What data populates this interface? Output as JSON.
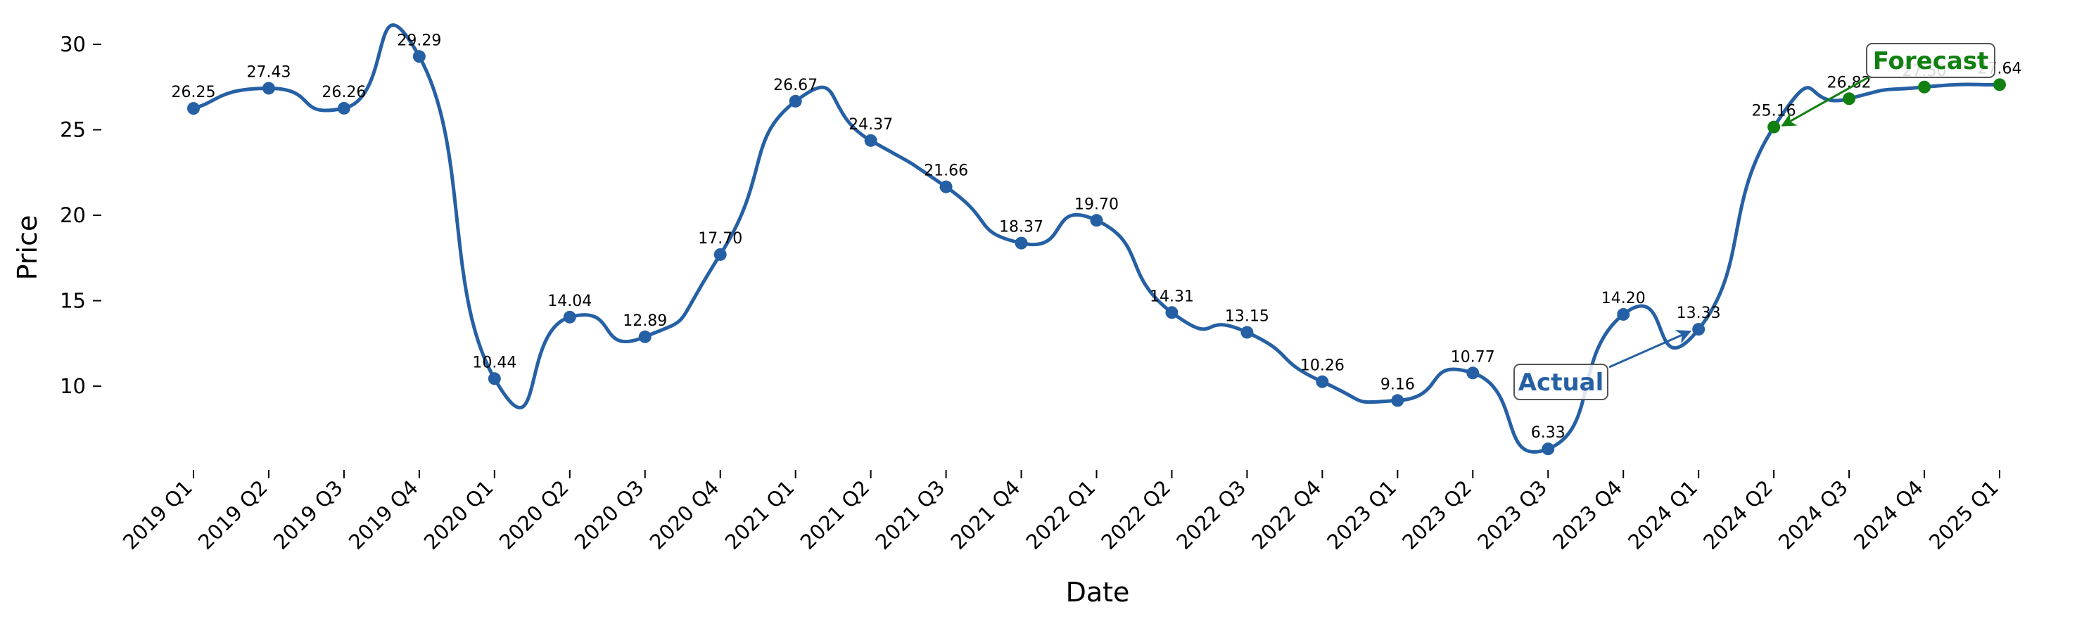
{
  "chart_data": {
    "type": "line",
    "title": "",
    "xlabel": "Date",
    "ylabel": "Price",
    "categories": [
      "2019 Q1",
      "2019 Q2",
      "2019 Q3",
      "2019 Q4",
      "2020 Q1",
      "2020 Q2",
      "2020 Q3",
      "2020 Q4",
      "2021 Q1",
      "2021 Q2",
      "2021 Q3",
      "2021 Q4",
      "2022 Q1",
      "2022 Q2",
      "2022 Q3",
      "2022 Q4",
      "2023 Q1",
      "2023 Q2",
      "2023 Q3",
      "2023 Q4",
      "2024 Q1",
      "2024 Q2",
      "2024 Q3",
      "2024 Q4",
      "2025 Q1"
    ],
    "series": [
      {
        "values": [
          26.25,
          27.43,
          26.26,
          29.29,
          10.44,
          14.04,
          12.89,
          17.7,
          26.67,
          24.37,
          21.66,
          18.37,
          19.7,
          14.31,
          13.15,
          10.26,
          9.16,
          10.77,
          6.33,
          14.2,
          13.33,
          25.16,
          26.82,
          27.5,
          27.64
        ],
        "labels": [
          "26.25",
          "27.43",
          "26.26",
          "29.29",
          "10.44",
          "14.04",
          "12.89",
          "17.70",
          "26.67",
          "24.37",
          "21.66",
          "18.37",
          "19.70",
          "14.31",
          "13.15",
          "10.26",
          "9.16",
          "10.77",
          "6.33",
          "14.20",
          "13.33",
          "25.16",
          "26.82",
          "27.50",
          "27.64"
        ],
        "forecast_start_index": 21
      }
    ],
    "yticks": [
      "10",
      "15",
      "20",
      "25",
      "30"
    ],
    "ylim": [
      4.5,
      32
    ],
    "grid": false,
    "annotations": {
      "actual": {
        "text": "Actual",
        "target_index": 20
      },
      "forecast": {
        "text": "Forecast",
        "target_index": 21
      }
    },
    "colors": {
      "actual": "#2660a4",
      "forecast": "#118011",
      "forecast_label": "#b0b0b0"
    }
  }
}
